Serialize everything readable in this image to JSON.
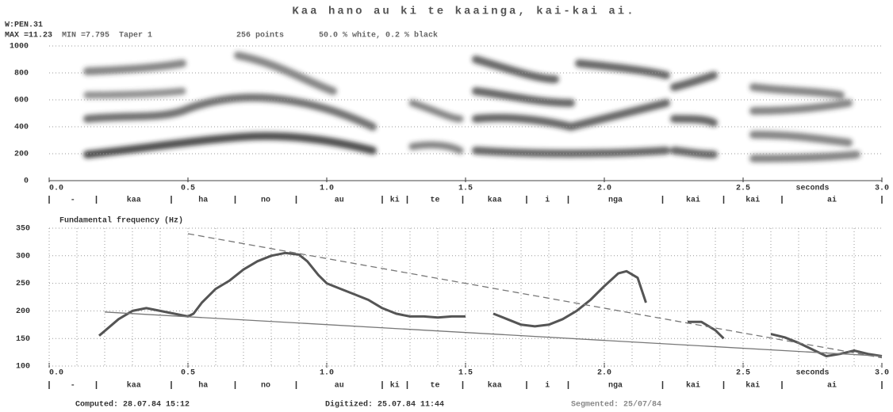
{
  "header": {
    "title": "Kaa hano au ki te kaainga, kai-kai ai.",
    "file": "W:PEN.31",
    "max": "MAX =11.23",
    "min": "MIN =7.795",
    "taper": "Taper 1",
    "points": "256 points",
    "shade": "50.0 % white, 0.2 % black"
  },
  "chart_data": [
    {
      "type": "spectrogram",
      "xlabel": "seconds",
      "xlim": [
        0,
        3
      ],
      "xticks": [
        {
          "value": 0,
          "label": "0.0"
        },
        0.5,
        {
          "value": 1,
          "label": "1.0"
        },
        1.5,
        {
          "value": 2,
          "label": "2.0"
        },
        2.5,
        {
          "value": 3,
          "label": "3.0"
        }
      ],
      "ylim": [
        0,
        1000
      ],
      "yticks": [
        0,
        200,
        400,
        600,
        800,
        1000
      ],
      "grid": true,
      "segments": {
        "boundaries": [
          0,
          0.17,
          0.44,
          0.67,
          0.89,
          1.2,
          1.29,
          1.49,
          1.72,
          1.87,
          2.21,
          2.43,
          2.64,
          3.0
        ],
        "labels": [
          "-",
          "kaa",
          "ha",
          "no",
          "au",
          "ki",
          "te",
          "kaa",
          "i",
          "nga",
          "kai",
          "kai",
          "ai"
        ]
      }
    },
    {
      "type": "line",
      "title": "Fundamental frequency  (Hz)",
      "xlabel": "seconds",
      "xlim": [
        0,
        3
      ],
      "xticks": [
        {
          "value": 0,
          "label": "0.0"
        },
        0.5,
        {
          "value": 1,
          "label": "1.0"
        },
        1.5,
        {
          "value": 2,
          "label": "2.0"
        },
        2.5,
        {
          "value": 3,
          "label": "3.0"
        }
      ],
      "ylim": [
        100,
        350
      ],
      "yticks": [
        100,
        150,
        200,
        250,
        300,
        350
      ],
      "grid": true,
      "series": [
        {
          "color": "#555555",
          "style": "solid",
          "width": 3,
          "x": [
            0.18,
            0.25,
            0.3,
            0.35,
            0.4,
            0.45,
            0.5,
            0.52,
            0.55,
            0.6,
            0.65,
            0.7,
            0.75,
            0.8,
            0.85,
            0.9,
            0.93,
            0.97,
            1.0,
            1.05,
            1.1,
            1.15,
            1.2,
            1.25,
            1.3,
            1.35,
            1.4,
            1.45,
            1.5,
            1.55,
            1.6,
            1.65,
            1.7,
            1.75,
            1.8,
            1.85,
            1.9,
            1.95,
            2.0,
            2.05,
            2.08,
            2.12,
            2.15,
            2.2,
            2.3,
            2.35,
            2.4,
            2.43,
            2.5,
            2.6,
            2.65,
            2.7,
            2.75,
            2.8,
            2.85,
            2.9,
            2.95,
            3.0
          ],
          "values": [
            155,
            185,
            200,
            205,
            200,
            195,
            190,
            195,
            215,
            240,
            255,
            275,
            290,
            300,
            305,
            302,
            290,
            265,
            250,
            240,
            230,
            220,
            205,
            195,
            190,
            190,
            188,
            190,
            190,
            null,
            195,
            185,
            175,
            172,
            175,
            185,
            200,
            220,
            245,
            268,
            272,
            260,
            215,
            null,
            180,
            180,
            165,
            150,
            null,
            158,
            152,
            142,
            130,
            118,
            122,
            128,
            122,
            118
          ]
        },
        {
          "color": "#777777",
          "style": "dashed",
          "width": 1.3,
          "x": [
            0.5,
            3.0
          ],
          "values": [
            340,
            115
          ]
        },
        {
          "color": "#777777",
          "style": "solid",
          "width": 1.3,
          "x": [
            0.2,
            3.0
          ],
          "values": [
            198,
            118
          ]
        }
      ],
      "segments": {
        "boundaries": [
          0,
          0.17,
          0.44,
          0.67,
          0.89,
          1.2,
          1.29,
          1.49,
          1.72,
          1.87,
          2.21,
          2.43,
          2.64,
          3.0
        ],
        "labels": [
          "-",
          "kaa",
          "ha",
          "no",
          "au",
          "ki",
          "te",
          "kaa",
          "i",
          "nga",
          "kai",
          "kai",
          "ai"
        ]
      }
    }
  ],
  "footer": {
    "computed": "Computed:  28.07.84   15:12",
    "digitized": "Digitized:  25.07.84   11:44",
    "segmented": "Segmented: 25/07/84"
  }
}
